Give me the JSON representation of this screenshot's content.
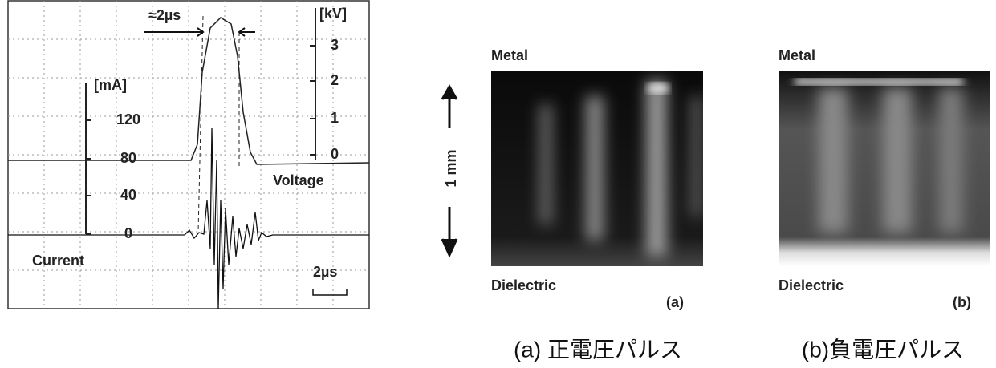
{
  "scope": {
    "pulse_width": "≈2µs",
    "voltage_unit": "[kV]",
    "voltage_ticks": [
      "3",
      "2",
      "1",
      "0"
    ],
    "current_unit": "[mA]",
    "current_ticks": [
      "120",
      "80",
      "40",
      "0"
    ],
    "voltage_label": "Voltage",
    "current_label": "Current",
    "time_scale": "2µs"
  },
  "axis_label": "1 mm",
  "panels": [
    {
      "top": "Metal",
      "bottom": "Dielectric",
      "tag": "(a)",
      "caption": "(a)  正電圧パルス"
    },
    {
      "top": "Metal",
      "bottom": "Dielectric",
      "tag": "(b)",
      "caption": "(b)負電圧パルス"
    }
  ]
}
